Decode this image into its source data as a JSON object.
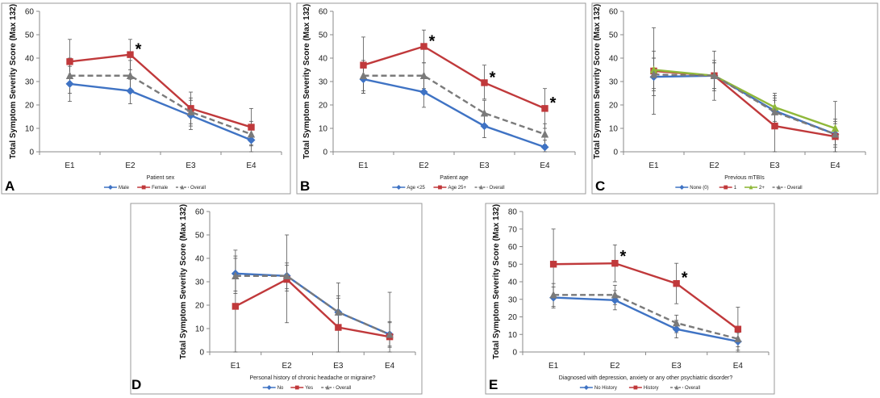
{
  "figure": {
    "panels": [
      "A",
      "B",
      "C",
      "D",
      "E"
    ]
  },
  "chart_data": [
    {
      "panel_label": "A",
      "type": "line",
      "title": "",
      "xlabel": "Patient sex",
      "ylabel": "Total Symptom Severity Score (Max 132)",
      "ylim": [
        0,
        60
      ],
      "yticks": [
        0,
        10,
        20,
        30,
        40,
        50,
        60
      ],
      "categories": [
        "E1",
        "E2",
        "E3",
        "E4"
      ],
      "series": [
        {
          "name": "Male",
          "color": "#3f73c4",
          "marker": "diamond",
          "dashed": false,
          "values": [
            29,
            26,
            15.5,
            5
          ],
          "err_low": [
            21.5,
            20.5,
            9.5,
            0
          ],
          "err_high": [
            36.5,
            31,
            22,
            10
          ]
        },
        {
          "name": "Female",
          "color": "#c0393b",
          "marker": "square",
          "dashed": false,
          "values": [
            38.5,
            41.5,
            18.5,
            10.5
          ],
          "err_low": [
            29,
            35,
            12,
            3
          ],
          "err_high": [
            48,
            48,
            25.5,
            18.5
          ]
        },
        {
          "name": "Overall",
          "color": "#7a7a7a",
          "marker": "triangle",
          "dashed": true,
          "values": [
            32.5,
            32.5,
            17,
            7.5
          ],
          "err_low": [
            25,
            26,
            11,
            2.5
          ],
          "err_high": [
            40,
            39,
            23,
            13
          ]
        }
      ],
      "significance": [
        {
          "category": "E2",
          "value": 45,
          "label": "*"
        }
      ]
    },
    {
      "panel_label": "B",
      "type": "line",
      "title": "",
      "xlabel": "Patient age",
      "ylabel": "Total Symptom Severity Score (Max 132)",
      "ylim": [
        0,
        60
      ],
      "yticks": [
        0,
        10,
        20,
        30,
        40,
        50,
        60
      ],
      "categories": [
        "E1",
        "E2",
        "E3",
        "E4"
      ],
      "series": [
        {
          "name": "Age <25",
          "color": "#3f73c4",
          "marker": "diamond",
          "dashed": false,
          "values": [
            31,
            25.5,
            11,
            2
          ],
          "err_low": [
            25,
            19,
            6,
            0
          ],
          "err_high": [
            37,
            32,
            16,
            5
          ]
        },
        {
          "name": "Age 25+",
          "color": "#c0393b",
          "marker": "square",
          "dashed": false,
          "values": [
            37,
            45,
            29.5,
            18.5
          ],
          "err_low": [
            25,
            38,
            22.5,
            10
          ],
          "err_high": [
            49,
            52,
            37,
            27
          ]
        },
        {
          "name": "Overall",
          "color": "#7a7a7a",
          "marker": "triangle",
          "dashed": true,
          "values": [
            32.5,
            32.5,
            16.5,
            7.5
          ],
          "err_low": [
            26,
            27,
            11,
            3
          ],
          "err_high": [
            39,
            38,
            22,
            12
          ]
        }
      ],
      "significance": [
        {
          "category": "E2",
          "value": 48.5,
          "label": "*"
        },
        {
          "category": "E3",
          "value": 33,
          "label": "*"
        },
        {
          "category": "E4",
          "value": 22,
          "label": "*"
        }
      ]
    },
    {
      "panel_label": "C",
      "type": "line",
      "title": "",
      "xlabel": "Previous mTBIs",
      "ylabel": "Total Symptom Severity Score (Max 132)",
      "ylim": [
        0,
        60
      ],
      "yticks": [
        0,
        10,
        20,
        30,
        40,
        50,
        60
      ],
      "categories": [
        "E1",
        "E2",
        "E3",
        "E4"
      ],
      "series": [
        {
          "name": "None (0)",
          "color": "#3f73c4",
          "marker": "diamond",
          "dashed": false,
          "values": [
            32,
            32.5,
            17.5,
            7.5
          ],
          "err_low": [
            24,
            26,
            11,
            2
          ],
          "err_high": [
            40,
            39,
            24,
            13
          ]
        },
        {
          "name": "1",
          "color": "#c0393b",
          "marker": "square",
          "dashed": false,
          "values": [
            34.5,
            32.5,
            11,
            6.5
          ],
          "err_low": [
            16,
            22,
            0,
            0
          ],
          "err_high": [
            53,
            43,
            22,
            14
          ]
        },
        {
          "name": "2+",
          "color": "#8fb83a",
          "marker": "triangle",
          "dashed": false,
          "values": [
            35,
            32.5,
            19,
            10
          ],
          "err_low": [
            27,
            27,
            13,
            0
          ],
          "err_high": [
            43,
            38,
            25,
            21.5
          ]
        },
        {
          "name": "Overall",
          "color": "#7a7a7a",
          "marker": "triangle",
          "dashed": true,
          "values": [
            33,
            32.5,
            17,
            7.5
          ],
          "err_low": [
            26,
            27,
            11,
            3
          ],
          "err_high": [
            40,
            38,
            23,
            12
          ]
        }
      ],
      "significance": []
    },
    {
      "panel_label": "D",
      "type": "line",
      "title": "",
      "xlabel": "Personal history of chronic headache or migraine?",
      "ylabel": "Total Symptom Severity Score (Max 132)",
      "ylim": [
        0,
        60
      ],
      "yticks": [
        0,
        10,
        20,
        30,
        40,
        50,
        60
      ],
      "categories": [
        "E1",
        "E2",
        "E3",
        "E4"
      ],
      "series": [
        {
          "name": "No",
          "color": "#3f73c4",
          "marker": "diamond",
          "dashed": false,
          "values": [
            33.5,
            32.5,
            17,
            7.5
          ],
          "err_low": [
            26,
            26,
            10,
            2
          ],
          "err_high": [
            41,
            37,
            24,
            13
          ]
        },
        {
          "name": "Yes",
          "color": "#c0393b",
          "marker": "square",
          "dashed": false,
          "values": [
            19.5,
            31,
            10.5,
            6.5
          ],
          "err_low": [
            0,
            12.5,
            0,
            0
          ],
          "err_high": [
            43.5,
            50,
            29.5,
            25.5
          ]
        },
        {
          "name": "Overall",
          "color": "#7a7a7a",
          "marker": "triangle",
          "dashed": true,
          "values": [
            32.5,
            32.5,
            17,
            7.5
          ],
          "err_low": [
            25,
            27,
            11,
            2.5
          ],
          "err_high": [
            40,
            38,
            23,
            12.5
          ]
        }
      ],
      "significance": []
    },
    {
      "panel_label": "E",
      "type": "line",
      "title": "",
      "xlabel": "Diagnosed with depression, anxiety or any other psychiatric disorder?",
      "ylabel": "Total Symptom Severity Score (Max 132)",
      "ylim": [
        0,
        80
      ],
      "yticks": [
        0,
        10,
        20,
        30,
        40,
        50,
        60,
        70,
        80
      ],
      "categories": [
        "E1",
        "E2",
        "E3",
        "E4"
      ],
      "series": [
        {
          "name": "No History",
          "color": "#3f73c4",
          "marker": "diamond",
          "dashed": false,
          "values": [
            31,
            29.5,
            13,
            6
          ],
          "err_low": [
            25,
            24,
            8,
            1
          ],
          "err_high": [
            37,
            35,
            18,
            11
          ]
        },
        {
          "name": "History",
          "color": "#c0393b",
          "marker": "square",
          "dashed": false,
          "values": [
            50,
            50.5,
            39,
            13
          ],
          "err_low": [
            30,
            40,
            27.5,
            0
          ],
          "err_high": [
            70,
            61,
            50.5,
            25.5
          ]
        },
        {
          "name": "Overall",
          "color": "#7a7a7a",
          "marker": "triangle",
          "dashed": true,
          "values": [
            32.5,
            32.5,
            16.5,
            7.5
          ],
          "err_low": [
            26,
            27,
            11,
            3
          ],
          "err_high": [
            39,
            38,
            21,
            12
          ]
        }
      ],
      "significance": [
        {
          "category": "E2",
          "value": 56,
          "label": "*"
        },
        {
          "category": "E3",
          "value": 44,
          "label": "*"
        }
      ]
    }
  ]
}
